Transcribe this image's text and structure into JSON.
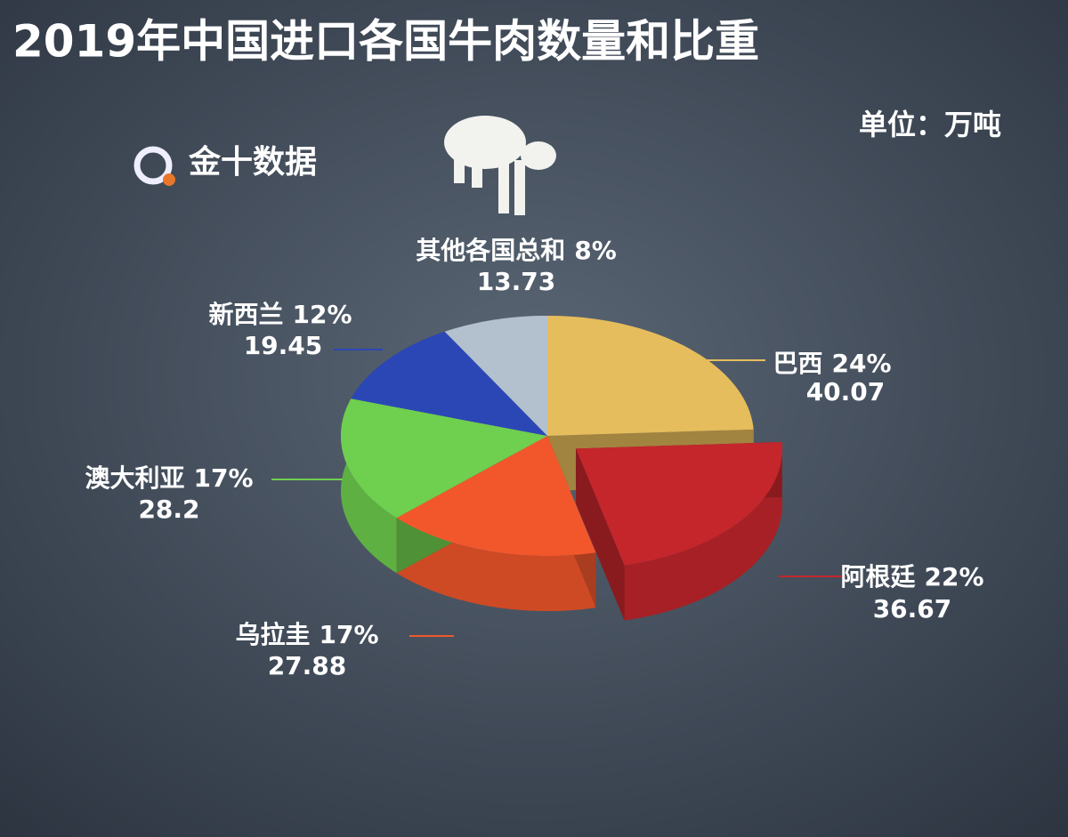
{
  "title": "2019年中国进口各国牛肉数量和比重",
  "unit": "单位：万吨",
  "logo": "金十数据",
  "chart_data": {
    "type": "pie",
    "categories": [
      "巴西",
      "阿根廷",
      "乌拉圭",
      "澳大利亚",
      "新西兰",
      "其他各国总和"
    ],
    "values": [
      40.07,
      36.67,
      27.88,
      28.2,
      19.45,
      13.73
    ],
    "shares": [
      24,
      22,
      17,
      17,
      12,
      8
    ],
    "share_labels": [
      "24%",
      "22%",
      "17%",
      "17%",
      "12%",
      "8%"
    ],
    "colors": [
      "#e6bd5c",
      "#c4262c",
      "#f2572c",
      "#6fcf4f",
      "#2b47b6",
      "#b3c0cd"
    ]
  }
}
